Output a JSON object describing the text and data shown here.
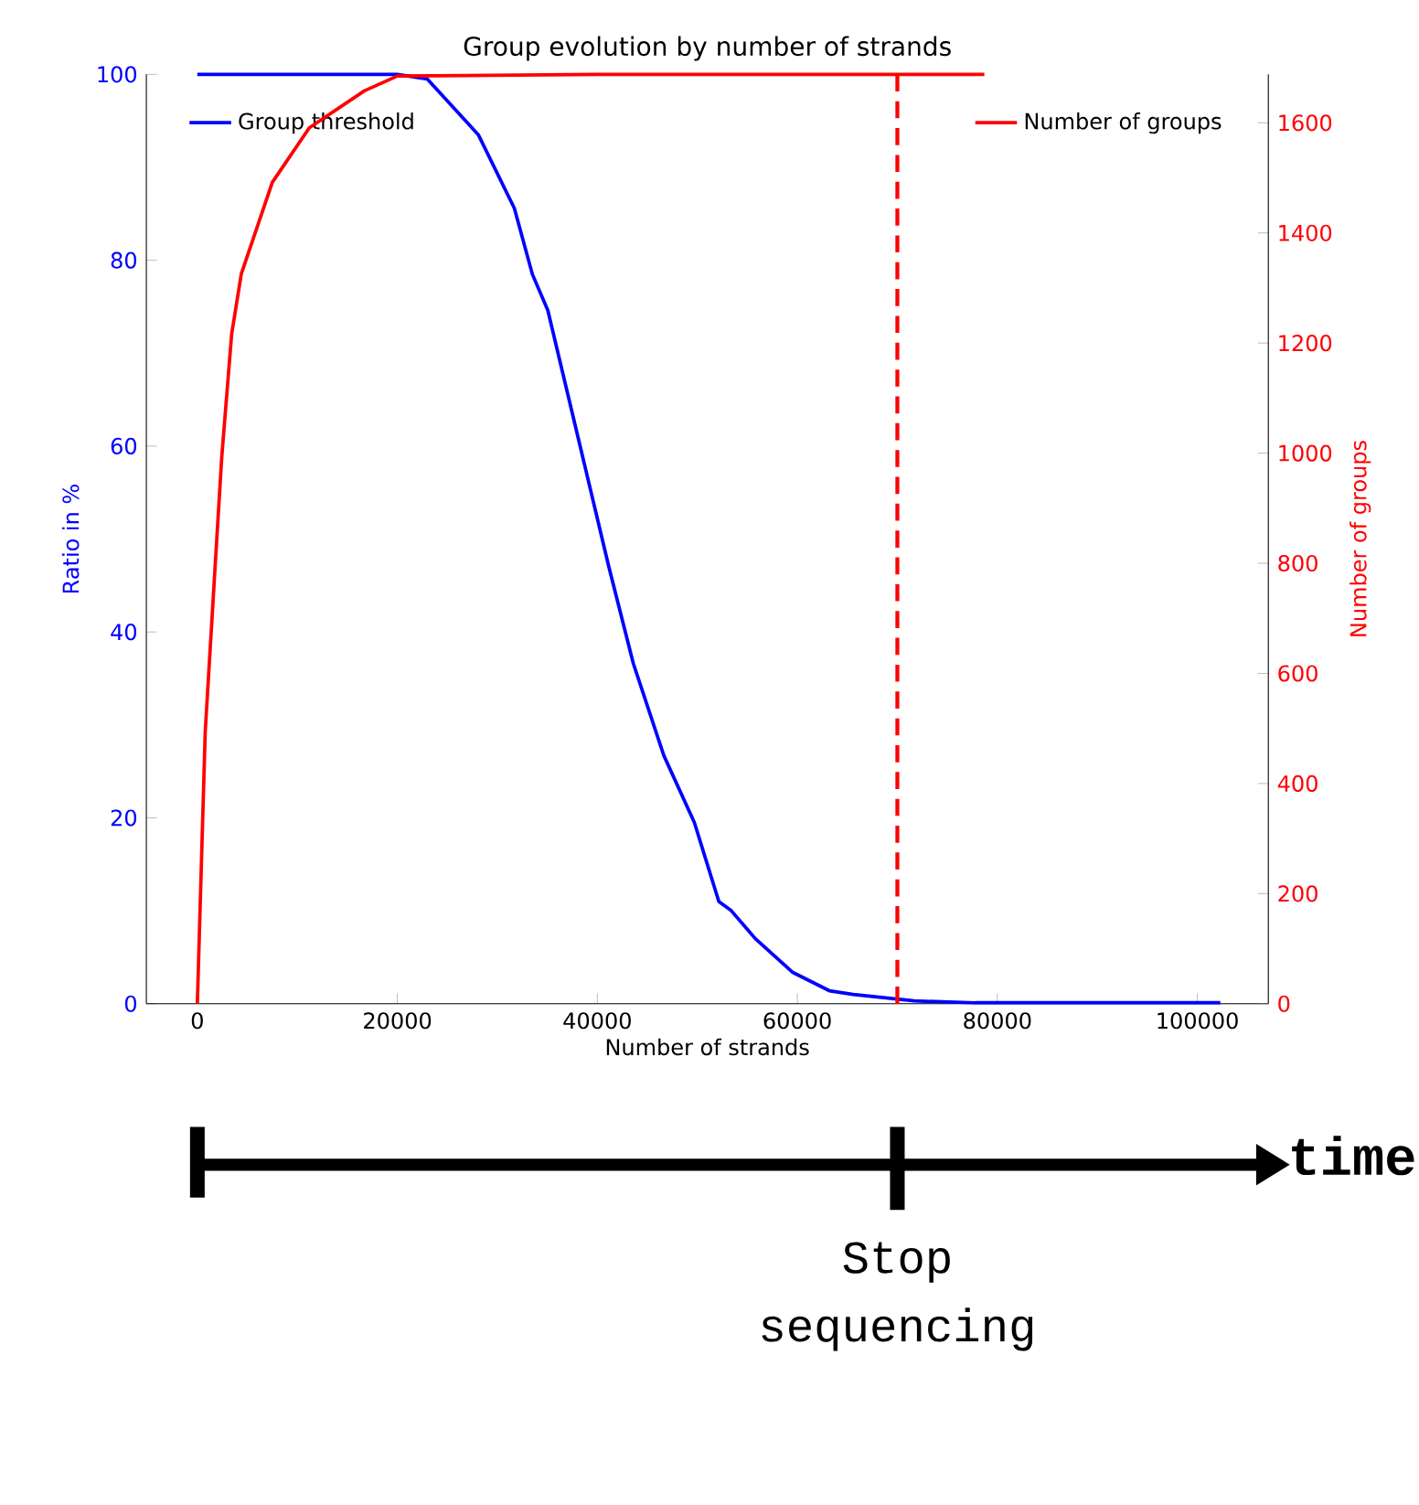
{
  "chart_data": {
    "type": "line",
    "title": "Group evolution by number of strands",
    "xlabel": "Number of strands",
    "ylabel": "Ratio in %",
    "y2label": "Number of groups",
    "xlim": [
      -5100,
      107100
    ],
    "xticks": [
      0,
      20000,
      40000,
      60000,
      80000,
      100000
    ],
    "ylim": [
      0,
      100
    ],
    "yticks": [
      0,
      20,
      40,
      60,
      80,
      100
    ],
    "y2lim": [
      0,
      1688
    ],
    "y2ticks": [
      0,
      200,
      400,
      600,
      800,
      1000,
      1200,
      1400,
      1600
    ],
    "legend": "top",
    "line_style": "solid",
    "series": [
      {
        "name": "Group threshold",
        "color": "#0000ff",
        "axis": "y",
        "x": [
          0,
          10000,
          20000,
          23000,
          28100,
          31700,
          33500,
          35050,
          38100,
          41150,
          43600,
          46650,
          49700,
          52150,
          53400,
          55800,
          59500,
          63200,
          65600,
          71700,
          77800,
          90000,
          102300
        ],
        "values": [
          100,
          100,
          100,
          99.5,
          93.5,
          85.6,
          78.5,
          74.6,
          60.8,
          47,
          36.6,
          26.7,
          19.5,
          11,
          10,
          7,
          3.4,
          1.4,
          1,
          0.3,
          0.1,
          0.1,
          0.1
        ]
      },
      {
        "name": "Number of groups",
        "color": "#ff0000",
        "axis": "y2",
        "x": [
          0,
          790,
          1700,
          2440,
          3430,
          4400,
          7500,
          11200,
          16700,
          20000,
          40000,
          60000,
          78700
        ],
        "values": [
          0,
          495,
          771,
          993,
          1216,
          1326,
          1492,
          1591,
          1658,
          1685,
          1688,
          1688,
          1688
        ]
      }
    ],
    "ref_lines": [
      {
        "axis": "x",
        "value": 70000,
        "color": "#ff0000",
        "line_style": "dashed"
      }
    ],
    "annotations": [
      "time",
      "Stop sequencing"
    ]
  }
}
